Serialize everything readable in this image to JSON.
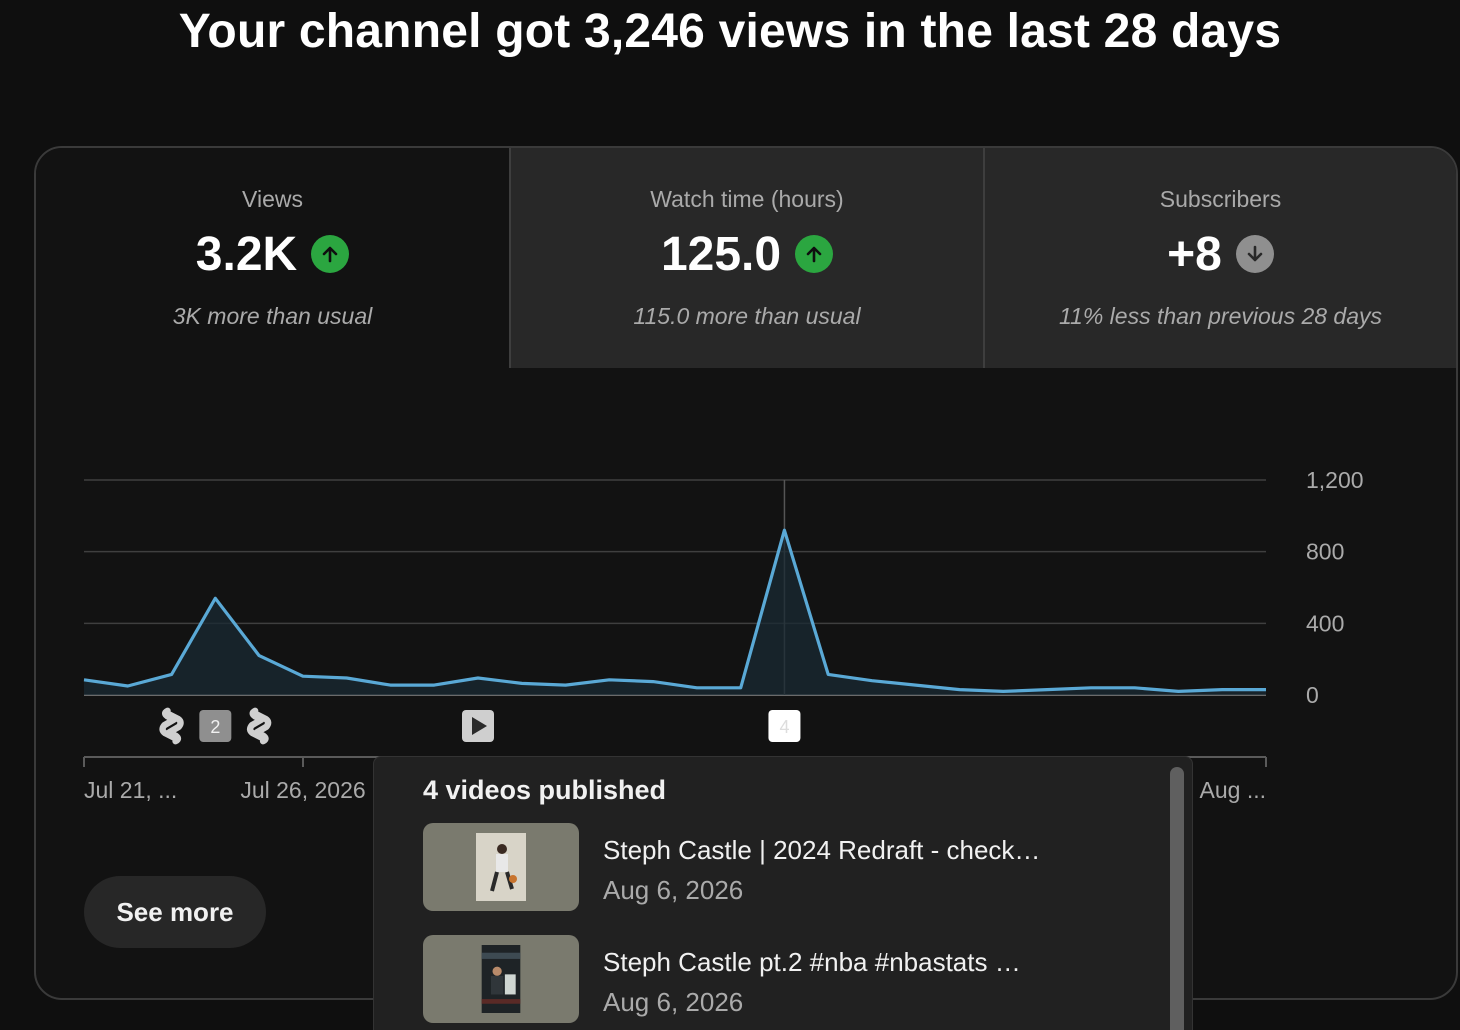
{
  "headline": "Your channel got 3,246 views in the last 28 days",
  "tabs": [
    {
      "label": "Views",
      "value": "3.2K",
      "trend": "up",
      "note": "3K more than usual"
    },
    {
      "label": "Watch time (hours)",
      "value": "125.0",
      "trend": "up",
      "note": "115.0 more than usual"
    },
    {
      "label": "Subscribers",
      "value": "+8",
      "trend": "down",
      "note": "11% less than previous 28 days"
    }
  ],
  "colors": {
    "line": "#5aa9d6",
    "trend_up": "#2ba640",
    "trend_down": "#8f8f8f"
  },
  "chart_data": {
    "type": "area",
    "y_ticks": [
      "1,200",
      "800",
      "400",
      "0"
    ],
    "ylim": [
      0,
      1200
    ],
    "x_tick_labels": [
      "Jul 21, ...",
      "Jul 26, 2026",
      "Aug ..."
    ],
    "values": [
      85,
      50,
      115,
      540,
      220,
      105,
      95,
      55,
      55,
      95,
      65,
      55,
      85,
      75,
      40,
      40,
      920,
      115,
      80,
      55,
      30,
      20,
      30,
      40,
      40,
      20,
      30,
      30
    ],
    "hover_index": 16,
    "publish_markers": [
      {
        "index": 2,
        "icon": "shorts-icon"
      },
      {
        "index": 3,
        "icon": "count-badge",
        "label": "2"
      },
      {
        "index": 4,
        "icon": "shorts-icon"
      },
      {
        "index": 9,
        "icon": "play-icon"
      },
      {
        "index": 16,
        "icon": "count-badge",
        "label": "4"
      }
    ],
    "grid": true
  },
  "see_more": "See more",
  "popup": {
    "title": "4 videos published",
    "items": [
      {
        "title": "Steph Castle | 2024 Redraft - check…",
        "date": "Aug 6, 2026"
      },
      {
        "title": "Steph Castle pt.2 #nba #nbastats …",
        "date": "Aug 6, 2026"
      }
    ]
  }
}
